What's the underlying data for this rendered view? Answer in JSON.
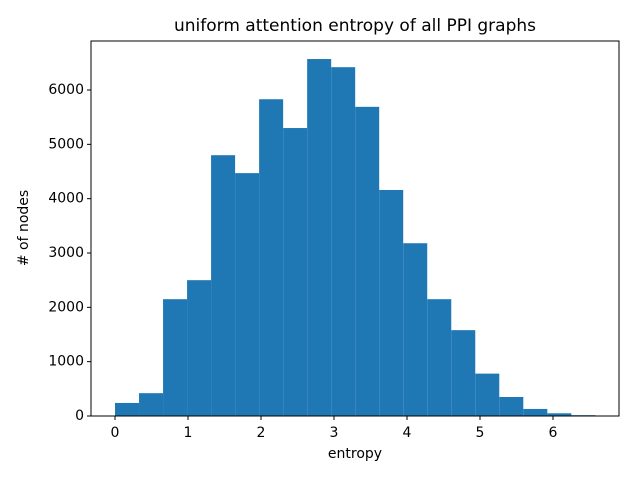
{
  "chart_data": {
    "type": "histogram",
    "title": "uniform attention entropy of all PPI graphs",
    "x_label": "entropy",
    "y_label": "# of nodes",
    "color": "#1f77b4",
    "bins": [
      0,
      0.329,
      0.658,
      0.987,
      1.316,
      1.645,
      1.974,
      2.303,
      2.632,
      2.961,
      3.29,
      3.619,
      3.948,
      4.277,
      4.606,
      4.935,
      5.264,
      5.593,
      5.922,
      6.251,
      6.58
    ],
    "values": [
      240,
      420,
      2150,
      2500,
      4800,
      4470,
      5830,
      5300,
      6570,
      6420,
      5690,
      4160,
      3180,
      2150,
      1580,
      780,
      350,
      130,
      50,
      15
    ],
    "xlim": [
      -0.329,
      6.904
    ],
    "ylim": [
      0,
      6902
    ],
    "xticks": [
      0,
      1,
      2,
      3,
      4,
      5,
      6
    ],
    "yticks": [
      0,
      1000,
      2000,
      3000,
      4000,
      5000,
      6000
    ]
  }
}
